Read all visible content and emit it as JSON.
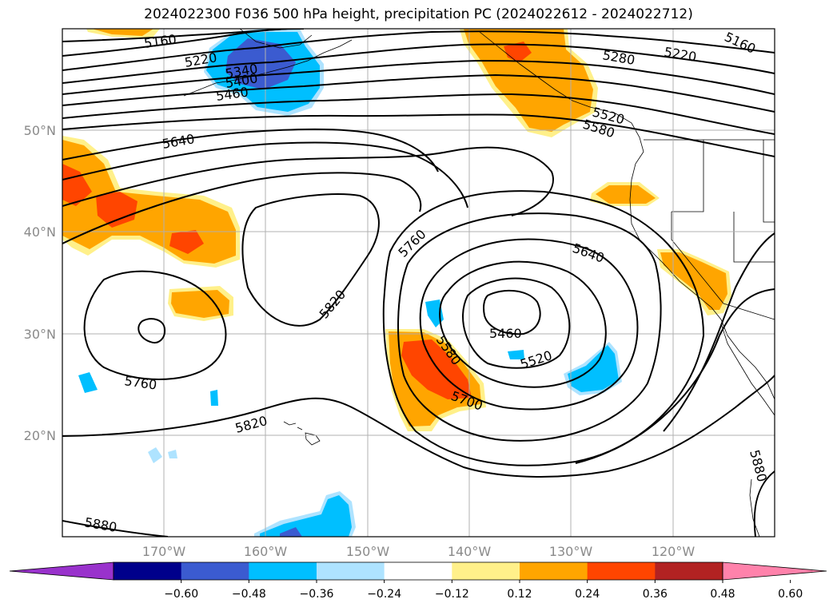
{
  "title": "2024022300 F036 500 hPa height, precipitation PC (2024022612 - 2024022712)",
  "axes": {
    "lat_labels": [
      "50°N",
      "40°N",
      "30°N",
      "20°N"
    ],
    "lon_labels": [
      "170°W",
      "160°W",
      "150°W",
      "140°W",
      "130°W",
      "120°W"
    ],
    "lon_range": [
      -180,
      -110
    ],
    "lat_range": [
      10,
      60
    ],
    "grid": true
  },
  "contour_labels": [
    "5160",
    "5220",
    "5340",
    "5400",
    "5460",
    "5640",
    "5760",
    "5820",
    "5760",
    "5820",
    "5880",
    "5460",
    "5580",
    "5520",
    "5700",
    "5640",
    "5280",
    "5220",
    "5160",
    "5520",
    "5580",
    "5880"
  ],
  "colorbar": {
    "ticks": [
      "−0.60",
      "−0.48",
      "−0.36",
      "−0.24",
      "−0.12",
      "0.12",
      "0.24",
      "0.36",
      "0.48",
      "0.60"
    ],
    "colors": [
      "#9932cc",
      "#00008b",
      "#3b5bd0",
      "#00bfff",
      "#aee3ff",
      "#ffffff",
      "#fff08a",
      "#ffa500",
      "#ff4500",
      "#b22222",
      "#ff82ab"
    ],
    "extend": "both"
  },
  "colors": {
    "pos_light": "#fff08a",
    "pos_mid": "#ffa500",
    "pos_strong": "#ff4500",
    "neg_light": "#aee3ff",
    "neg_mid": "#00bfff",
    "neg_strong": "#3b5bd0"
  }
}
